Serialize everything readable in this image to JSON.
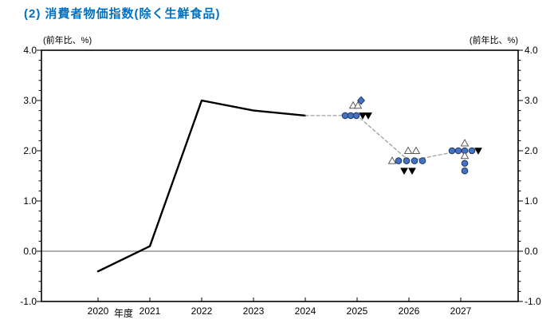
{
  "title": "(2) 消費者物価指数(除く生鮮食品)",
  "unit_label_left": "(前年比、%)",
  "unit_label_right": "(前年比、%)",
  "colors": {
    "title": "#0070C0",
    "actual_line": "#000000",
    "forecast_line": "#A0A0A0",
    "zero_line": "#808080",
    "frame": "#000000",
    "marker_blue_fill": "#4472C4",
    "marker_blue_edge": "#1F3864",
    "tri_up_fill": "#FFFFFF",
    "tri_up_edge": "#595959",
    "tri_down_fill": "#000000"
  },
  "chart_data": {
    "type": "line",
    "title": "(2) 消費者物価指数(除く生鮮食品)",
    "y_unit": "(前年比、%)",
    "ylim": [
      -1.0,
      4.0
    ],
    "y_tick_step": 1.0,
    "y_minor_step": 0.2,
    "grid": false,
    "y_tick_labels": [
      "4.0",
      "3.0",
      "2.0",
      "1.0",
      "0.0",
      "-1.0"
    ],
    "x_tick_labels": [
      "2020",
      "2021",
      "2022",
      "2023",
      "2024",
      "2025",
      "2026",
      "2027"
    ],
    "fiscal_year_note": "年度",
    "series": [
      {
        "name": "actual",
        "line": "solid",
        "color": "#000000",
        "x": [
          2020,
          2021,
          2022,
          2023,
          2024
        ],
        "values": [
          -0.4,
          0.1,
          3.0,
          2.8,
          2.7
        ]
      },
      {
        "name": "forecast_median",
        "line": "dashed",
        "color": "#A0A0A0",
        "x": [
          2024,
          2025,
          2026,
          2027
        ],
        "values": [
          2.7,
          2.7,
          1.8,
          2.0
        ]
      }
    ],
    "forecast_markers": [
      {
        "year": 2025,
        "value": 2.7,
        "shape": "circle",
        "dx": -15
      },
      {
        "year": 2025,
        "value": 2.7,
        "shape": "circle",
        "dx": -8
      },
      {
        "year": 2025,
        "value": 2.7,
        "shape": "circle",
        "dx": -1
      },
      {
        "year": 2025,
        "value": 2.7,
        "shape": "tri_down",
        "dx": 7
      },
      {
        "year": 2025,
        "value": 2.7,
        "shape": "tri_down",
        "dx": 14
      },
      {
        "year": 2025,
        "value": 2.9,
        "shape": "tri_up",
        "dx": -5
      },
      {
        "year": 2025,
        "value": 2.9,
        "shape": "tri_up",
        "dx": 1
      },
      {
        "year": 2025,
        "value": 3.0,
        "shape": "diamond",
        "dx": 5
      },
      {
        "year": 2026,
        "value": 2.0,
        "shape": "tri_up",
        "dx": -1
      },
      {
        "year": 2026,
        "value": 2.0,
        "shape": "tri_up",
        "dx": 9
      },
      {
        "year": 2026,
        "value": 1.8,
        "shape": "tri_up",
        "dx": -21
      },
      {
        "year": 2026,
        "value": 1.8,
        "shape": "circle",
        "dx": -13
      },
      {
        "year": 2026,
        "value": 1.8,
        "shape": "circle",
        "dx": -3
      },
      {
        "year": 2026,
        "value": 1.8,
        "shape": "circle",
        "dx": 7
      },
      {
        "year": 2026,
        "value": 1.8,
        "shape": "circle",
        "dx": 17
      },
      {
        "year": 2026,
        "value": 1.6,
        "shape": "tri_down",
        "dx": -6
      },
      {
        "year": 2026,
        "value": 1.6,
        "shape": "tri_down",
        "dx": 4
      },
      {
        "year": 2027,
        "value": 2.0,
        "shape": "circle",
        "dx": -11
      },
      {
        "year": 2027,
        "value": 2.0,
        "shape": "circle",
        "dx": -3
      },
      {
        "year": 2027,
        "value": 2.0,
        "shape": "circle",
        "dx": 5
      },
      {
        "year": 2027,
        "value": 2.0,
        "shape": "circle",
        "dx": 14
      },
      {
        "year": 2027,
        "value": 2.15,
        "shape": "tri_up",
        "dx": 5
      },
      {
        "year": 2027,
        "value": 2.0,
        "shape": "tri_down",
        "dx": 22
      },
      {
        "year": 2027,
        "value": 1.9,
        "shape": "tri_up",
        "dx": 5
      },
      {
        "year": 2027,
        "value": 1.75,
        "shape": "circle",
        "dx": 5
      },
      {
        "year": 2027,
        "value": 1.6,
        "shape": "circle",
        "dx": 5
      }
    ]
  }
}
